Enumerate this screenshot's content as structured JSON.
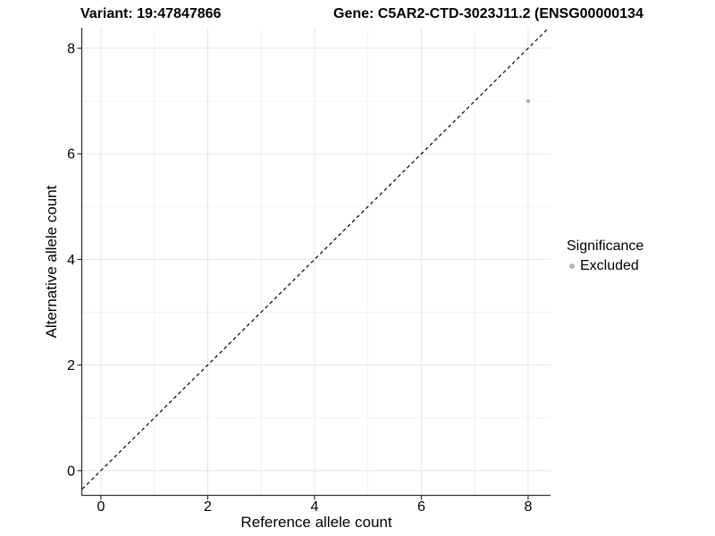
{
  "header": {
    "variant_title": "Variant: 19:47847866",
    "gene_title": "Gene: C5AR2-CTD-3023J11.2 (ENSG00000134"
  },
  "chart_data": {
    "type": "scatter",
    "title": "",
    "xlabel": "Reference allele count",
    "ylabel": "Alternative allele count",
    "xlim": [
      -0.35,
      8.42
    ],
    "ylim": [
      -0.46,
      8.39
    ],
    "xticks": [
      0,
      2,
      4,
      6,
      8
    ],
    "yticks": [
      0,
      2,
      4,
      6,
      8
    ],
    "xticks_minor": [
      1,
      3,
      5,
      7
    ],
    "yticks_minor": [
      1,
      3,
      5,
      7
    ],
    "grid": "major+minor",
    "legend_position": "right",
    "reference_line": {
      "kind": "identity",
      "style": "dashed",
      "color": "#000000"
    },
    "series": [
      {
        "name": "Excluded",
        "color": "#b5b5b5",
        "points": [
          [
            8,
            7
          ]
        ]
      }
    ]
  },
  "legend": {
    "title": "Significance",
    "items": [
      {
        "label": "Excluded",
        "color": "#b5b5b5"
      }
    ]
  },
  "colors": {
    "grid_major": "#e5e5e5",
    "grid_minor": "#f1f1f1",
    "axis_line": "#333333",
    "tick_text": "#000000"
  }
}
